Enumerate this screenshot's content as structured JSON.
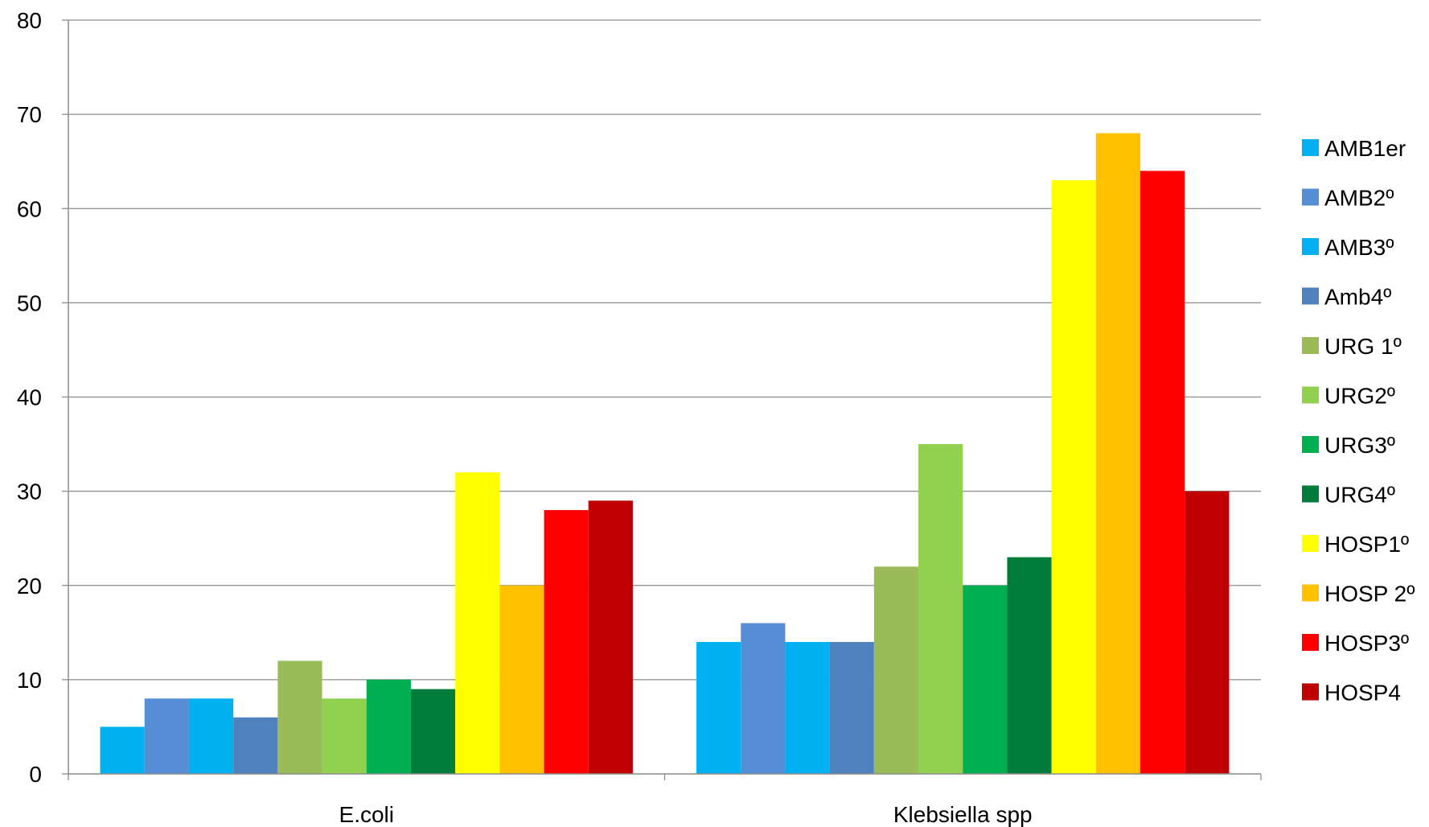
{
  "chart_data": {
    "type": "bar",
    "title": "",
    "xlabel": "",
    "ylabel": "",
    "ylim": [
      0,
      80
    ],
    "yticks": [
      0,
      10,
      20,
      30,
      40,
      50,
      60,
      70,
      80
    ],
    "grid": true,
    "legend_position": "right",
    "categories": [
      "E.coli",
      "Klebsiella spp"
    ],
    "series": [
      {
        "name": "AMB1er",
        "color": "#00B0F0",
        "values": [
          5,
          14
        ]
      },
      {
        "name": "AMB2º",
        "color": "#558ED5",
        "values": [
          8,
          16
        ]
      },
      {
        "name": "AMB3º",
        "color": "#00B0F0",
        "values": [
          8,
          14
        ]
      },
      {
        "name": "Amb4º",
        "color": "#4F81BD",
        "values": [
          6,
          14
        ]
      },
      {
        "name": "URG 1º",
        "color": "#9BBB59",
        "values": [
          12,
          22
        ]
      },
      {
        "name": "URG2º",
        "color": "#92D050",
        "values": [
          8,
          35
        ]
      },
      {
        "name": "URG3º",
        "color": "#00B050",
        "values": [
          10,
          20
        ]
      },
      {
        "name": "URG4º",
        "color": "#007D3A",
        "values": [
          9,
          23
        ]
      },
      {
        "name": "HOSP1º",
        "color": "#FFFF00",
        "values": [
          32,
          63
        ]
      },
      {
        "name": "HOSP 2º",
        "color": "#FFC000",
        "values": [
          20,
          68
        ]
      },
      {
        "name": "HOSP3º",
        "color": "#FF0000",
        "values": [
          28,
          64
        ]
      },
      {
        "name": "HOSP4",
        "color": "#C00000",
        "values": [
          29,
          30
        ]
      }
    ]
  }
}
